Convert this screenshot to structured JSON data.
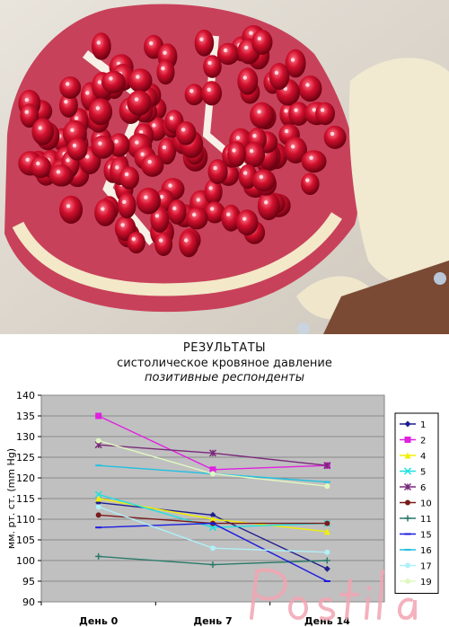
{
  "chart_data": {
    "type": "line",
    "title": "РЕЗУЛЬТАТЫ",
    "subtitle": "систолическое кровяное давление",
    "subtitle2": "позитивные респонденты",
    "ylabel": "мм. рт. ст. (mm Hg)",
    "xlabel": "",
    "categories": [
      "День 0",
      "День 7",
      "День 14"
    ],
    "ylim": [
      90,
      140
    ],
    "yticks": [
      90,
      95,
      100,
      105,
      110,
      115,
      120,
      125,
      130,
      135,
      140
    ],
    "grid": true,
    "legend": "right",
    "series": [
      {
        "name": "1",
        "values": [
          114,
          111,
          98
        ],
        "color": "#1f1f8f",
        "marker": "diamond"
      },
      {
        "name": "2",
        "values": [
          135,
          122,
          123
        ],
        "color": "#e020e0",
        "marker": "square"
      },
      {
        "name": "4",
        "values": [
          115,
          110,
          107
        ],
        "color": "#f0f000",
        "marker": "triangle"
      },
      {
        "name": "5",
        "values": [
          116,
          108,
          109
        ],
        "color": "#20e0e0",
        "marker": "x"
      },
      {
        "name": "6",
        "values": [
          128,
          126,
          123
        ],
        "color": "#7a2a7a",
        "marker": "star"
      },
      {
        "name": "10",
        "values": [
          111,
          109,
          109
        ],
        "color": "#7a1a1a",
        "marker": "circle"
      },
      {
        "name": "11",
        "values": [
          101,
          99,
          100
        ],
        "color": "#2a7a6a",
        "marker": "plus"
      },
      {
        "name": "15",
        "values": [
          108,
          109,
          95
        ],
        "color": "#1a1ae0",
        "marker": "dash"
      },
      {
        "name": "16",
        "values": [
          123,
          121,
          119
        ],
        "color": "#20c0e0",
        "marker": "dash"
      },
      {
        "name": "17",
        "values": [
          113,
          103,
          102
        ],
        "color": "#b0f0f8",
        "marker": "circle"
      },
      {
        "name": "19",
        "values": [
          129,
          121,
          118
        ],
        "color": "#e0f8c0",
        "marker": "circle"
      }
    ]
  },
  "watermark": {
    "text": "Postila"
  }
}
